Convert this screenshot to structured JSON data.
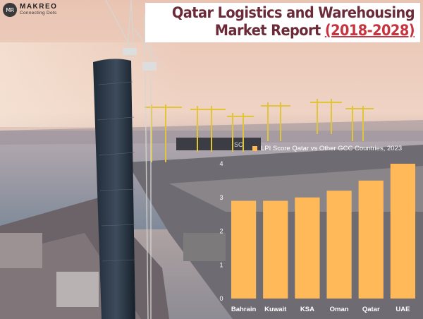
{
  "brand": {
    "logo_mark": "MR",
    "name": "MAKREO",
    "tagline": "Connecting Dots"
  },
  "title": {
    "line1": "Qatar Logistics and Warehousing",
    "line2_main": "Market Report",
    "line2_years": "(2018-2028)"
  },
  "colors": {
    "bar": "#ffb959",
    "title": "#6b2a37",
    "title_years": "#c7343f"
  },
  "chart_data": {
    "type": "bar",
    "title": "LPI Score Qatar vs Other GCC Countries, 2023",
    "categories": [
      "Bahrain",
      "Kuwait",
      "KSA",
      "Oman",
      "Qatar",
      "UAE"
    ],
    "values": [
      2.9,
      2.9,
      3.0,
      3.2,
      3.5,
      4.0
    ],
    "ylim": [
      0,
      4
    ],
    "yticks": [
      "0",
      "1",
      "2",
      "3",
      "4"
    ],
    "legend_position": "top",
    "grid": false
  }
}
